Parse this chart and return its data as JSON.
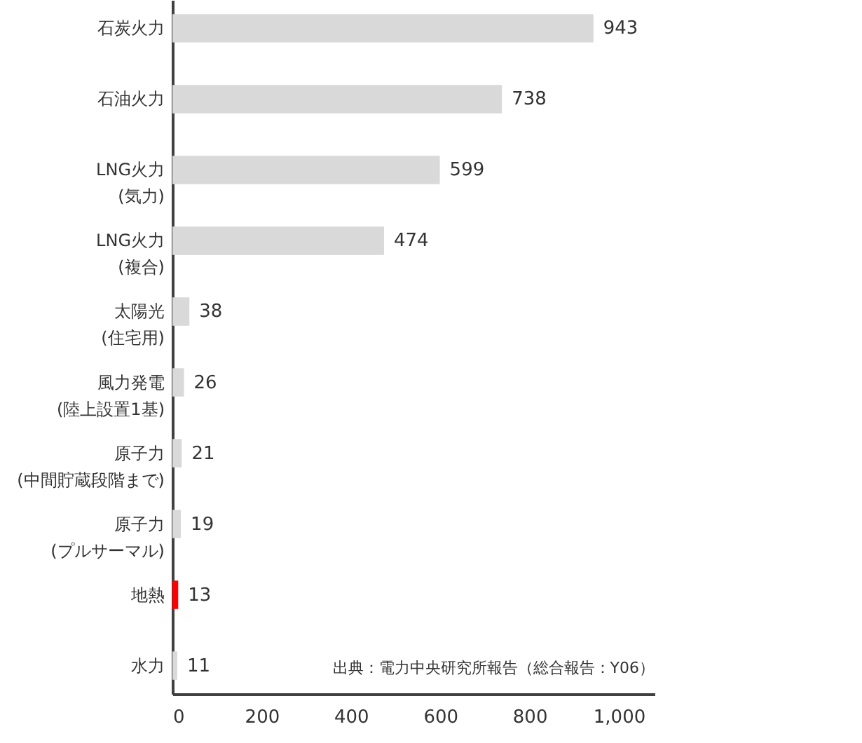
{
  "chart_data": {
    "type": "bar",
    "orientation": "horizontal",
    "categories": [
      "石炭火力",
      "石油火力",
      "LNG火力\n(気力)",
      "LNG火力\n(複合)",
      "太陽光\n(住宅用)",
      "風力発電\n(陸上設置1基)",
      "原子力\n(中間貯蔵段階まで)",
      "原子力\n(プルサーマル)",
      "地熱",
      "水力"
    ],
    "values": [
      943,
      738,
      599,
      474,
      38,
      26,
      21,
      19,
      13,
      11
    ],
    "colors": [
      "#d9d9d9",
      "#d9d9d9",
      "#d9d9d9",
      "#d9d9d9",
      "#d9d9d9",
      "#d9d9d9",
      "#d9d9d9",
      "#d9d9d9",
      "#ff0000",
      "#d9d9d9"
    ],
    "xlim": [
      0,
      1080
    ],
    "xticks": [
      0,
      200,
      400,
      600,
      800,
      {
        "value": 1000,
        "label": "1,000"
      }
    ],
    "data_labels": true,
    "annotations": [
      "出典：電力中央研究所報告（総合報告：Y06）"
    ]
  }
}
